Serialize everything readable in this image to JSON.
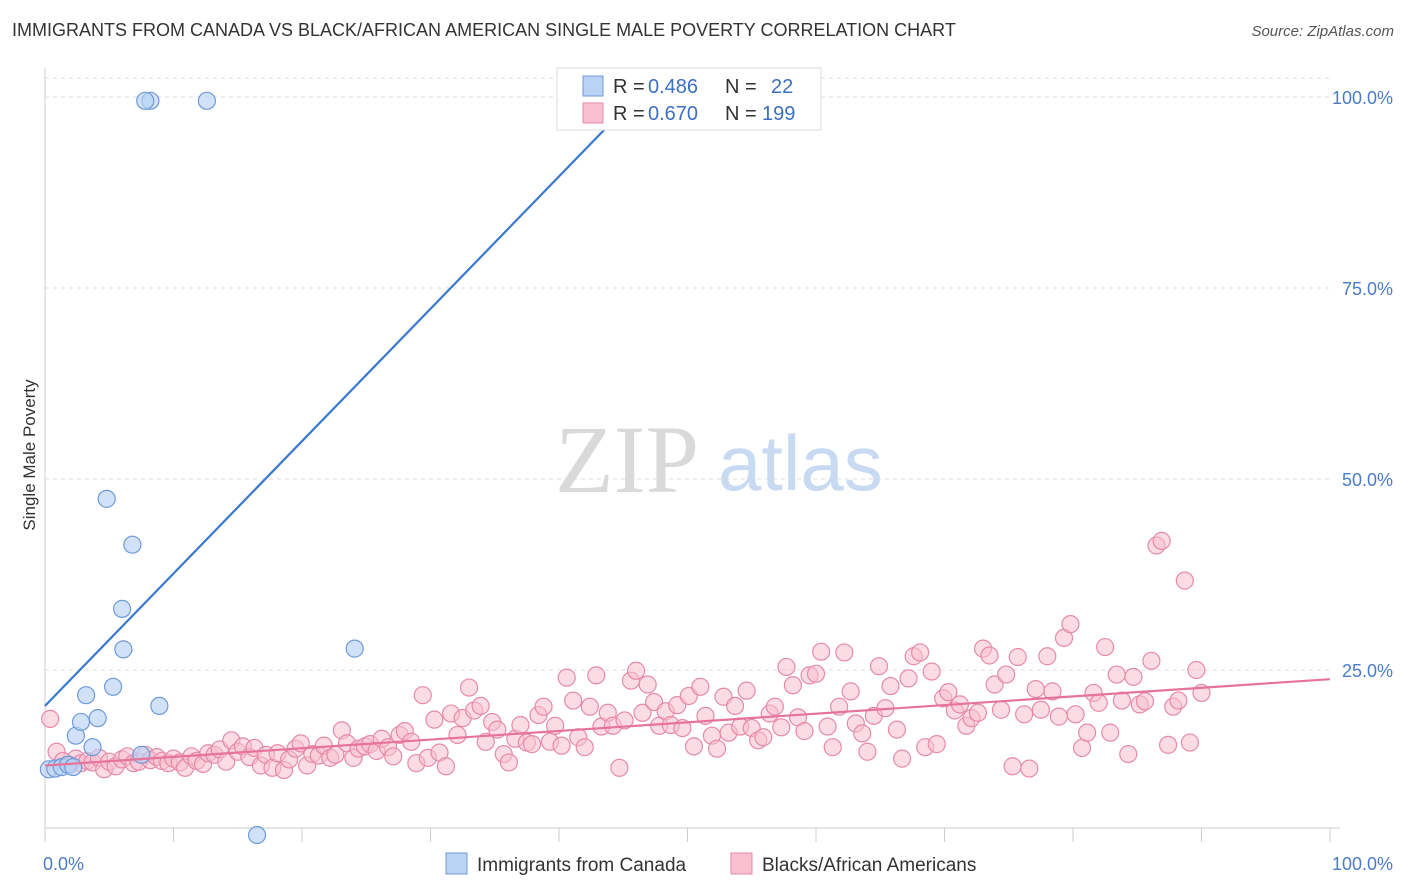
{
  "title": "IMMIGRANTS FROM CANADA VS BLACK/AFRICAN AMERICAN SINGLE MALE POVERTY CORRELATION CHART",
  "source": "Source: ZipAtlas.com",
  "watermark": {
    "zip": "ZIP",
    "atlas": "atlas"
  },
  "colors": {
    "blue_fill": "#b9d3f5",
    "blue_stroke": "#6f9ad8",
    "blue_line": "#3a78cf",
    "pink_fill": "#f7bfd0",
    "pink_stroke": "#e68aa8",
    "pink_line": "#e5739a",
    "tick_text": "#4a7cc9",
    "grid": "#dddddd"
  },
  "legend": {
    "r_label": "R =",
    "n_label": "N =",
    "series": [
      {
        "r": "0.486",
        "n": "22"
      },
      {
        "r": "0.670",
        "n": "199"
      }
    ]
  },
  "chart_data": {
    "type": "scatter",
    "title": "IMMIGRANTS FROM CANADA VS BLACK/AFRICAN AMERICAN SINGLE MALE POVERTY CORRELATION CHART",
    "xlabel": "",
    "ylabel": "Single Male Poverty",
    "xlim": [
      0,
      100
    ],
    "ylim": [
      0,
      103
    ],
    "x_tick_labels": [
      "0.0%",
      "100.0%"
    ],
    "y_tick_labels": [
      "25.0%",
      "50.0%",
      "75.0%",
      "100.0%"
    ],
    "y_ticks": [
      25,
      50,
      75,
      100
    ],
    "grid": true,
    "legend_position": "top-center",
    "series": [
      {
        "name": "Immigrants from Canada",
        "color": "#b9d3f5",
        "trend": {
          "x0": 0,
          "y0": 20.3,
          "x1": 46,
          "y1": 100
        },
        "points": [
          [
            0.3,
            12.0
          ],
          [
            0.8,
            12.1
          ],
          [
            1.3,
            12.3
          ],
          [
            1.8,
            12.6
          ],
          [
            2.2,
            12.3
          ],
          [
            2.4,
            16.4
          ],
          [
            2.8,
            18.2
          ],
          [
            3.2,
            21.7
          ],
          [
            3.7,
            14.9
          ],
          [
            4.1,
            18.7
          ],
          [
            4.8,
            47.4
          ],
          [
            5.3,
            22.8
          ],
          [
            6.1,
            27.7
          ],
          [
            6.0,
            33.0
          ],
          [
            6.8,
            41.4
          ],
          [
            7.5,
            13.9
          ],
          [
            8.2,
            99.5
          ],
          [
            7.8,
            99.5
          ],
          [
            8.9,
            20.3
          ],
          [
            12.6,
            99.5
          ],
          [
            16.5,
            3.4
          ],
          [
            24.1,
            27.8
          ]
        ]
      },
      {
        "name": "Blacks/African Americans",
        "color": "#f7bfd0",
        "trend": {
          "x0": 0,
          "y0": 12.5,
          "x1": 100,
          "y1": 23.8
        },
        "points": [
          [
            0.4,
            18.6
          ],
          [
            0.9,
            14.3
          ],
          [
            1.4,
            13.1
          ],
          [
            1.9,
            12.6
          ],
          [
            2.4,
            13.4
          ],
          [
            2.8,
            12.8
          ],
          [
            3.3,
            13.1
          ],
          [
            3.7,
            12.9
          ],
          [
            4.2,
            13.5
          ],
          [
            4.6,
            12.0
          ],
          [
            5.0,
            13.0
          ],
          [
            5.5,
            12.4
          ],
          [
            6.0,
            13.3
          ],
          [
            6.4,
            13.7
          ],
          [
            6.9,
            12.8
          ],
          [
            7.3,
            13.0
          ],
          [
            7.8,
            13.9
          ],
          [
            8.2,
            13.2
          ],
          [
            8.7,
            13.6
          ],
          [
            9.1,
            13.1
          ],
          [
            9.6,
            12.8
          ],
          [
            10.0,
            13.4
          ],
          [
            10.5,
            12.9
          ],
          [
            10.9,
            12.2
          ],
          [
            11.4,
            13.7
          ],
          [
            11.8,
            13.1
          ],
          [
            12.3,
            12.7
          ],
          [
            12.7,
            14.1
          ],
          [
            13.2,
            13.9
          ],
          [
            13.6,
            14.6
          ],
          [
            14.1,
            13.0
          ],
          [
            14.5,
            15.8
          ],
          [
            15.0,
            14.3
          ],
          [
            15.4,
            15.0
          ],
          [
            15.9,
            13.6
          ],
          [
            16.3,
            14.8
          ],
          [
            16.8,
            12.5
          ],
          [
            17.2,
            13.9
          ],
          [
            17.7,
            12.2
          ],
          [
            18.1,
            14.1
          ],
          [
            18.6,
            11.9
          ],
          [
            19.0,
            13.3
          ],
          [
            19.5,
            14.7
          ],
          [
            19.9,
            15.4
          ],
          [
            20.4,
            12.5
          ],
          [
            20.8,
            14.0
          ],
          [
            21.3,
            13.8
          ],
          [
            21.7,
            15.1
          ],
          [
            22.2,
            13.5
          ],
          [
            22.6,
            13.9
          ],
          [
            23.1,
            17.1
          ],
          [
            23.5,
            15.4
          ],
          [
            24.0,
            13.5
          ],
          [
            24.4,
            14.7
          ],
          [
            24.9,
            15.0
          ],
          [
            25.3,
            15.3
          ],
          [
            25.8,
            14.4
          ],
          [
            26.2,
            16.0
          ],
          [
            26.7,
            14.9
          ],
          [
            27.1,
            13.7
          ],
          [
            27.6,
            16.5
          ],
          [
            28.0,
            17.0
          ],
          [
            28.5,
            15.6
          ],
          [
            28.9,
            12.8
          ],
          [
            29.4,
            21.7
          ],
          [
            29.8,
            13.5
          ],
          [
            30.3,
            18.5
          ],
          [
            30.7,
            14.2
          ],
          [
            31.2,
            12.4
          ],
          [
            31.6,
            19.3
          ],
          [
            32.1,
            16.5
          ],
          [
            32.5,
            18.7
          ],
          [
            33.0,
            22.7
          ],
          [
            33.4,
            19.7
          ],
          [
            33.9,
            20.3
          ],
          [
            34.3,
            15.6
          ],
          [
            34.8,
            18.2
          ],
          [
            35.2,
            17.2
          ],
          [
            35.7,
            14.0
          ],
          [
            36.1,
            12.9
          ],
          [
            36.6,
            16.0
          ],
          [
            37.0,
            17.8
          ],
          [
            37.5,
            15.5
          ],
          [
            37.9,
            15.3
          ],
          [
            38.4,
            19.1
          ],
          [
            38.8,
            20.2
          ],
          [
            39.3,
            15.6
          ],
          [
            39.7,
            17.7
          ],
          [
            40.2,
            15.1
          ],
          [
            40.6,
            24.0
          ],
          [
            41.1,
            21.0
          ],
          [
            41.5,
            16.2
          ],
          [
            42.0,
            14.9
          ],
          [
            42.4,
            20.2
          ],
          [
            42.9,
            24.3
          ],
          [
            43.3,
            17.6
          ],
          [
            43.8,
            19.4
          ],
          [
            44.2,
            17.7
          ],
          [
            44.7,
            12.2
          ],
          [
            45.1,
            18.4
          ],
          [
            45.6,
            23.6
          ],
          [
            46.0,
            24.9
          ],
          [
            46.5,
            19.4
          ],
          [
            46.9,
            23.1
          ],
          [
            47.4,
            20.8
          ],
          [
            47.8,
            17.7
          ],
          [
            48.3,
            19.6
          ],
          [
            48.7,
            17.8
          ],
          [
            49.2,
            20.4
          ],
          [
            49.6,
            17.4
          ],
          [
            50.1,
            21.6
          ],
          [
            50.5,
            15.0
          ],
          [
            51.0,
            22.8
          ],
          [
            51.4,
            19.0
          ],
          [
            51.9,
            16.4
          ],
          [
            52.3,
            14.7
          ],
          [
            52.8,
            21.5
          ],
          [
            53.2,
            16.8
          ],
          [
            53.7,
            20.3
          ],
          [
            54.1,
            17.6
          ],
          [
            54.6,
            22.3
          ],
          [
            55.0,
            17.4
          ],
          [
            55.5,
            15.8
          ],
          [
            55.9,
            16.2
          ],
          [
            56.4,
            19.3
          ],
          [
            56.8,
            20.2
          ],
          [
            57.3,
            17.5
          ],
          [
            57.7,
            25.4
          ],
          [
            58.2,
            23.0
          ],
          [
            58.6,
            18.8
          ],
          [
            59.1,
            17.0
          ],
          [
            59.5,
            24.3
          ],
          [
            60.0,
            24.5
          ],
          [
            60.4,
            27.4
          ],
          [
            60.9,
            17.6
          ],
          [
            61.3,
            14.9
          ],
          [
            61.8,
            20.2
          ],
          [
            62.2,
            27.3
          ],
          [
            62.7,
            22.2
          ],
          [
            63.1,
            18.0
          ],
          [
            63.6,
            16.7
          ],
          [
            64.0,
            14.3
          ],
          [
            64.5,
            19.0
          ],
          [
            64.9,
            25.5
          ],
          [
            65.4,
            20.0
          ],
          [
            65.8,
            22.9
          ],
          [
            66.3,
            17.2
          ],
          [
            66.7,
            13.4
          ],
          [
            67.2,
            23.9
          ],
          [
            67.6,
            26.8
          ],
          [
            68.1,
            27.3
          ],
          [
            68.5,
            14.9
          ],
          [
            69.0,
            24.8
          ],
          [
            69.4,
            15.3
          ],
          [
            69.9,
            21.3
          ],
          [
            70.3,
            22.1
          ],
          [
            70.8,
            19.7
          ],
          [
            71.2,
            20.5
          ],
          [
            71.7,
            17.7
          ],
          [
            72.1,
            18.7
          ],
          [
            72.6,
            19.4
          ],
          [
            73.0,
            27.8
          ],
          [
            73.5,
            26.9
          ],
          [
            73.9,
            23.1
          ],
          [
            74.4,
            19.8
          ],
          [
            74.8,
            24.4
          ],
          [
            75.3,
            12.4
          ],
          [
            75.7,
            26.7
          ],
          [
            76.2,
            19.2
          ],
          [
            76.6,
            12.1
          ],
          [
            77.1,
            22.5
          ],
          [
            77.5,
            19.8
          ],
          [
            78.0,
            26.8
          ],
          [
            78.4,
            22.2
          ],
          [
            78.9,
            18.9
          ],
          [
            79.3,
            29.2
          ],
          [
            79.8,
            31.0
          ],
          [
            80.2,
            19.2
          ],
          [
            80.7,
            14.8
          ],
          [
            81.1,
            16.8
          ],
          [
            81.6,
            22.0
          ],
          [
            82.0,
            20.7
          ],
          [
            82.5,
            28.0
          ],
          [
            82.9,
            16.8
          ],
          [
            83.4,
            24.4
          ],
          [
            83.8,
            21.0
          ],
          [
            84.3,
            14.0
          ],
          [
            84.7,
            24.1
          ],
          [
            85.2,
            20.5
          ],
          [
            85.6,
            20.9
          ],
          [
            86.1,
            26.2
          ],
          [
            86.5,
            41.3
          ],
          [
            86.9,
            41.9
          ],
          [
            87.4,
            15.2
          ],
          [
            87.8,
            20.2
          ],
          [
            88.2,
            21.0
          ],
          [
            88.7,
            36.7
          ],
          [
            89.1,
            15.5
          ],
          [
            89.6,
            25.0
          ],
          [
            90.0,
            22.0
          ]
        ]
      }
    ]
  },
  "bottom_legend": [
    {
      "label": "Immigrants from Canada"
    },
    {
      "label": "Blacks/African Americans"
    }
  ]
}
